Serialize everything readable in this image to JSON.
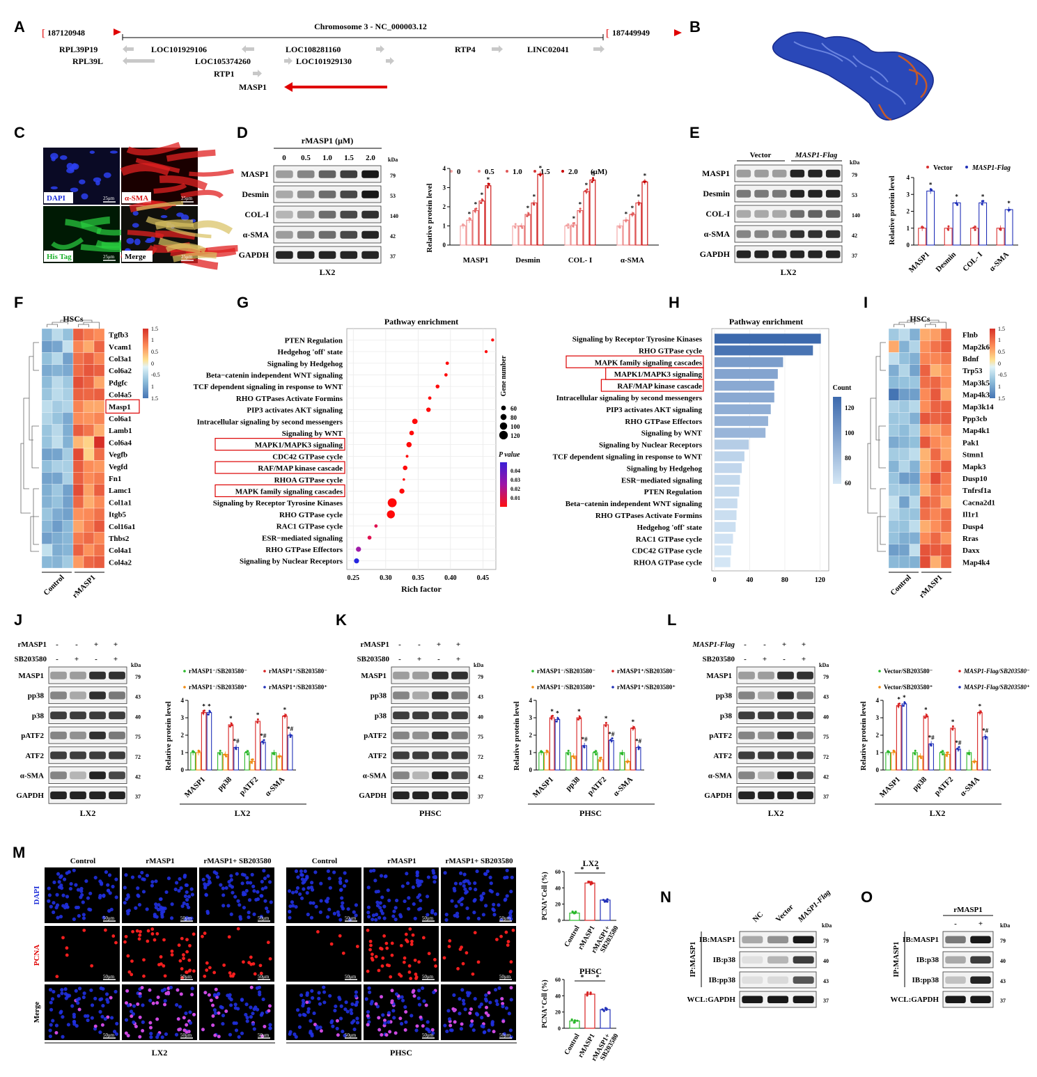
{
  "panel_letters": [
    "A",
    "B",
    "C",
    "D",
    "E",
    "F",
    "G",
    "H",
    "I",
    "J",
    "K",
    "L",
    "M",
    "N",
    "O"
  ],
  "panelA": {
    "start": "187120948",
    "end": "187449949",
    "title": "Chromosome 3 - NC_000003.12",
    "genes": [
      "RPL39P19",
      "LOC101929106",
      "LOC108281160",
      "RTP4",
      "LINC02041",
      "RPL39L",
      "LOC105374260",
      "LOC101929130",
      "RTP1",
      "MASP1"
    ]
  },
  "panelC": {
    "labels": [
      "DAPI",
      "α-SMA",
      "His Tag",
      "Merge"
    ],
    "scale": "25μm",
    "colors": {
      "dapi": "#1a2bd8",
      "sma": "#d81818",
      "his": "#1ab02a"
    }
  },
  "panelD": {
    "treatment": "rMASP1 (μM)",
    "doses": [
      "0",
      "0.5",
      "1.0",
      "1.5",
      "2.0"
    ],
    "blots": [
      "MASP1",
      "Desmin",
      "COL-I",
      "α-SMA",
      "GAPDH"
    ],
    "kda": [
      "79",
      "53",
      "140",
      "42",
      "37"
    ],
    "kda_label": "kDa",
    "cell": "LX2",
    "legend": [
      "0",
      "0.5",
      "1.0",
      "1.5",
      "2.0"
    ],
    "legend_unit": "(μM)",
    "ylabel": "Relative protein level",
    "groups": [
      "MASP1",
      "Desmin",
      "COL- I",
      "α-SMA"
    ],
    "star": "*"
  },
  "panelE": {
    "groups_top": [
      "Vector",
      "MASP1-Flag"
    ],
    "blots": [
      "MASP1",
      "Desmin",
      "COL-I",
      "α-SMA",
      "GAPDH"
    ],
    "kda": [
      "79",
      "53",
      "140",
      "42",
      "37"
    ],
    "kda_label": "kDa",
    "cell": "LX2",
    "legend": [
      "Vector",
      "MASP1-Flag"
    ],
    "ylabel": "Relative protein level",
    "groups": [
      "MASP1",
      "Desmin",
      "COL- I",
      "α-SMA"
    ],
    "star": "*"
  },
  "panelF": {
    "title": "HSCs",
    "genes": [
      "Tgfb3",
      "Vcam1",
      "Col3a1",
      "Col6a2",
      "Pdgfc",
      "Col4a5",
      "Masp1",
      "Col6a1",
      "Lamb1",
      "Col6a4",
      "Vegfb",
      "Vegfd",
      "Fn1",
      "Lamc1",
      "Col1a1",
      "Itgb5",
      "Col16a1",
      "Thbs2",
      "Col4a1",
      "Col4a2"
    ],
    "groups": [
      "Control",
      "rMASP1"
    ],
    "scale": [
      "1.5",
      "1",
      "0.5",
      "0",
      "-0.5",
      "1",
      "1.5"
    ]
  },
  "panelG": {
    "title": "Pathway enrichment",
    "xlabel": "Rich factor",
    "xticks": [
      "0.25",
      "0.30",
      "0.35",
      "0.40",
      "0.45"
    ],
    "size_title": "Gene number",
    "size_levels": [
      "60",
      "80",
      "100",
      "120"
    ],
    "p_title": "P value",
    "p_ticks": [
      "0.04",
      "0.03",
      "0.02",
      "0.01"
    ]
  },
  "panelH": {
    "title": "Pathway enrichment",
    "xticks": [
      "0",
      "40",
      "80",
      "120"
    ],
    "legend_title": "Count",
    "legend_ticks": [
      "120",
      "100",
      "80",
      "60"
    ]
  },
  "panelI": {
    "title": "HSCs",
    "genes": [
      "Flnb",
      "Map2k6",
      "Bdnf",
      "Trp53",
      "Map3k5",
      "Map4k3",
      "Map3k14",
      "Ppp3cb",
      "Map4k1",
      "Pak1",
      "Stmn1",
      "Mapk3",
      "Dusp10",
      "Tnfrsf1a",
      "Cacna2d1",
      "Il1r1",
      "Dusp4",
      "Rras",
      "Daxx",
      "Map4k4"
    ],
    "groups": [
      "Control",
      "rMASP1"
    ],
    "scale": [
      "1.5",
      "1",
      "0.5",
      "0",
      "-0.5",
      "1",
      "1.5"
    ]
  },
  "panelJ": {
    "row1_label": "rMASP1",
    "row2_label": "SB203580",
    "row1": [
      "-",
      "-",
      "+",
      "+"
    ],
    "row2": [
      "-",
      "+",
      "-",
      "+"
    ],
    "blots": [
      "MASP1",
      "pp38",
      "p38",
      "pATF2",
      "ATF2",
      "α-SMA",
      "GAPDH"
    ],
    "kda": [
      "79",
      "43",
      "40",
      "75",
      "72",
      "42",
      "37"
    ],
    "kda_label": "kDa",
    "cell": "LX2",
    "legend": [
      "rMASP1⁻/SB203580⁻",
      "rMASP1⁺/SB203580⁻",
      "rMASP1⁻/SB203580⁺",
      "rMASP1⁺/SB203580⁺"
    ],
    "ylabel": "Relative protein level",
    "groups": [
      "MASP1",
      "pp38",
      "pATF2",
      "α-SMA"
    ],
    "xgroup": "LX2"
  },
  "panelK": {
    "row1_label": "rMASP1",
    "row2_label": "SB203580",
    "row1": [
      "-",
      "-",
      "+",
      "+"
    ],
    "row2": [
      "-",
      "+",
      "-",
      "+"
    ],
    "blots": [
      "MASP1",
      "pp38",
      "p38",
      "pATF2",
      "ATF2",
      "α-SMA",
      "GAPDH"
    ],
    "kda": [
      "79",
      "43",
      "40",
      "75",
      "72",
      "42",
      "37"
    ],
    "kda_label": "kDa",
    "cell": "PHSC",
    "legend": [
      "rMASP1⁻/SB203580⁻",
      "rMASP1⁺/SB203580⁻",
      "rMASP1⁻/SB203580⁺",
      "rMASP1⁺/SB203580⁺"
    ],
    "ylabel": "Relative protein level",
    "groups": [
      "MASP1",
      "pp38",
      "pATF2",
      "α-SMA"
    ],
    "xgroup": "PHSC"
  },
  "panelL": {
    "row1_label": "MASP1-Flag",
    "row2_label": "SB203580",
    "row1": [
      "-",
      "-",
      "+",
      "+"
    ],
    "row2": [
      "-",
      "+",
      "-",
      "+"
    ],
    "blots": [
      "MASP1",
      "pp38",
      "p38",
      "pATF2",
      "ATF2",
      "α-SMA",
      "GAPDH"
    ],
    "kda": [
      "79",
      "43",
      "40",
      "75",
      "72",
      "42",
      "37"
    ],
    "kda_label": "kDa",
    "cell": "LX2",
    "legend": [
      "Vector/SB203580⁻",
      "MASP1-Flag/SB203580⁻",
      "Vector/SB203580⁺",
      "MASP1-Flag/SB203580⁺"
    ],
    "ylabel": "Relative protein level",
    "groups": [
      "MASP1",
      "pp38",
      "pATF2",
      "α-SMA"
    ],
    "xgroup": "LX2"
  },
  "panelM": {
    "cols": [
      "Control",
      "rMASP1",
      "rMASP1+ SB203580"
    ],
    "rows": [
      "DAPI",
      "PCNA",
      "Merge"
    ],
    "scale": "50μm",
    "cells": [
      "LX2",
      "PHSC"
    ],
    "bar_titles": [
      "LX2",
      "PHSC"
    ],
    "bar_ylabel": "PCNA⁺Cell (%)",
    "bar_groups": [
      "Control",
      "rMASP1",
      "rMASP1+",
      "SB203580"
    ],
    "bar_yticks_lx2": [
      "0",
      "20",
      "40",
      "60"
    ],
    "bar_yticks_phsc": [
      "0",
      "20",
      "40",
      "60"
    ]
  },
  "panelN": {
    "lanes": [
      "NC",
      "Vector",
      "MASP1-Flag"
    ],
    "ip": "IP:MASP1",
    "blots": [
      "IB:MASP1",
      "IB:p38",
      "IB:pp38",
      "WCL:GAPDH"
    ],
    "kda": [
      "79",
      "40",
      "43",
      "37"
    ],
    "kda_label": "kDa"
  },
  "panelO": {
    "treat": "rMASP1",
    "lanes": [
      "-",
      "+"
    ],
    "ip": "IP:MASP1",
    "blots": [
      "IB:MASP1",
      "IB:p38",
      "IB:pp38",
      "WCL:GAPDH"
    ],
    "kda": [
      "79",
      "40",
      "43",
      "37"
    ],
    "kda_label": "kDa"
  },
  "chart_data": [
    {
      "id": "G",
      "type": "scatter",
      "title": "Pathway enrichment",
      "xlabel": "Rich factor",
      "xlim": [
        0.24,
        0.47
      ],
      "categories": [
        "PTEN Regulation",
        "Hedgehog 'off' state",
        "Signaling by Hedgehog",
        "Beta−catenin independent WNT signaling",
        "TCF dependent signaling in response to WNT",
        "RHO GTPases Activate Formins",
        "PIP3 activates AKT signaling",
        "Intracellular signaling by second messengers",
        "Signaling by WNT",
        "MAPK1/MAPK3 signaling",
        "CDC42 GTPase cycle",
        "RAF/MAP kinase cascade",
        "RHOA GTPase cycle",
        "MAPK family signaling cascades",
        "Signaling by Receptor Tyrosine Kinases",
        "RHO GTPase cycle",
        "RAC1 GTPase cycle",
        "ESR−mediated signaling",
        "RHO GTPase Effectors",
        "Signaling by Nuclear Receptors"
      ],
      "highlighted": [
        "MAPK1/MAPK3 signaling",
        "RAF/MAP kinase cascade",
        "MAPK family signaling cascades"
      ],
      "rich_factor": [
        0.465,
        0.455,
        0.395,
        0.393,
        0.38,
        0.368,
        0.366,
        0.345,
        0.34,
        0.336,
        0.333,
        0.33,
        0.328,
        0.325,
        0.31,
        0.308,
        0.285,
        0.275,
        0.258,
        0.255
      ],
      "gene_number": [
        33,
        32,
        38,
        37,
        46,
        38,
        56,
        71,
        58,
        69,
        28,
        57,
        24,
        66,
        126,
        111,
        38,
        47,
        65,
        64
      ],
      "p_value": [
        0.001,
        0.001,
        0.001,
        0.001,
        0.001,
        0.002,
        0.001,
        0.001,
        0.001,
        0.001,
        0.002,
        0.001,
        0.004,
        0.001,
        0.001,
        0.001,
        0.006,
        0.01,
        0.025,
        0.045
      ]
    },
    {
      "id": "H",
      "type": "bar",
      "title": "Pathway enrichment",
      "categories": [
        "Signaling by Receptor Tyrosine Kinases",
        "RHO GTPase cycle",
        "MAPK family signaling cascades",
        "MAPK1/MAPK3 signaling",
        "RAF/MAP kinase cascade",
        "Intracellular signaling by second messengers",
        "PIP3 activates AKT signaling",
        "RHO GTPase Effectors",
        "Signaling by WNT",
        "Signaling by Nuclear Receptors",
        "TCF dependent signaling in response to WNT",
        "Signaling by Hedgehog",
        "ESR−mediated signaling",
        "PTEN Regulation",
        "Beta−catenin independent WNT signaling",
        "RHO GTPases Activate Formins",
        "Hedgehog 'off' state",
        "RAC1 GTPase cycle",
        "CDC42 GTPase cycle",
        "RHOA GTPase cycle"
      ],
      "highlighted": [
        "MAPK family signaling cascades",
        "MAPK1/MAPK3 signaling",
        "RAF/MAP kinase cascade"
      ],
      "values": [
        121,
        112,
        78,
        72,
        68,
        68,
        64,
        61,
        58,
        39,
        34,
        31,
        29,
        28,
        26,
        25,
        24,
        21,
        19,
        18
      ],
      "xlim": [
        0,
        130
      ]
    },
    {
      "id": "D",
      "type": "bar",
      "ylabel": "Relative protein level",
      "ylim": [
        0,
        4
      ],
      "categories": [
        "MASP1",
        "Desmin",
        "COL- I",
        "α-SMA"
      ],
      "series": [
        {
          "name": "0",
          "values": [
            1.0,
            1.0,
            1.0,
            1.0
          ]
        },
        {
          "name": "0.5",
          "values": [
            1.3,
            1.0,
            1.05,
            1.3
          ]
        },
        {
          "name": "1.0",
          "values": [
            1.8,
            1.6,
            1.8,
            1.6
          ]
        },
        {
          "name": "1.5",
          "values": [
            2.3,
            2.2,
            2.8,
            2.2
          ]
        },
        {
          "name": "2.0",
          "values": [
            3.1,
            3.7,
            3.4,
            3.3
          ]
        }
      ]
    },
    {
      "id": "E",
      "type": "bar",
      "ylabel": "Relative protein level",
      "ylim": [
        0,
        4
      ],
      "categories": [
        "MASP1",
        "Desmin",
        "COL- I",
        "α-SMA"
      ],
      "series": [
        {
          "name": "Vector",
          "values": [
            1.0,
            1.0,
            1.0,
            1.0
          ]
        },
        {
          "name": "MASP1-Flag",
          "values": [
            3.2,
            2.5,
            2.5,
            2.1
          ]
        }
      ]
    },
    {
      "id": "J",
      "type": "bar",
      "ylabel": "Relative protein level",
      "ylim": [
        0,
        4
      ],
      "categories": [
        "MASP1",
        "pp38",
        "pATF2",
        "α-SMA"
      ],
      "series": [
        {
          "name": "rMASP1⁻/SB203580⁻",
          "values": [
            1.0,
            1.0,
            1.0,
            1.0
          ]
        },
        {
          "name": "rMASP1⁻/SB203580⁺",
          "values": [
            1.0,
            0.9,
            0.5,
            0.8
          ]
        },
        {
          "name": "rMASP1⁺/SB203580⁻",
          "values": [
            3.3,
            2.6,
            2.8,
            3.1
          ]
        },
        {
          "name": "rMASP1⁺/SB203580⁺",
          "values": [
            3.3,
            1.3,
            1.6,
            2.0
          ]
        }
      ]
    },
    {
      "id": "K",
      "type": "bar",
      "ylabel": "Relative protein level",
      "ylim": [
        0,
        4
      ],
      "categories": [
        "MASP1",
        "pp38",
        "pATF2",
        "α-SMA"
      ],
      "series": [
        {
          "name": "rMASP1⁻/SB203580⁻",
          "values": [
            1.0,
            1.0,
            1.0,
            1.0
          ]
        },
        {
          "name": "rMASP1⁻/SB203580⁺",
          "values": [
            1.0,
            0.8,
            0.6,
            0.5
          ]
        },
        {
          "name": "rMASP1⁺/SB203580⁻",
          "values": [
            3.0,
            3.0,
            2.6,
            2.4
          ]
        },
        {
          "name": "rMASP1⁺/SB203580⁺",
          "values": [
            2.9,
            1.4,
            1.7,
            1.3
          ]
        }
      ]
    },
    {
      "id": "L",
      "type": "bar",
      "ylabel": "Relative protein level",
      "ylim": [
        0,
        4
      ],
      "categories": [
        "MASP1",
        "pp38",
        "pATF2",
        "α-SMA"
      ],
      "series": [
        {
          "name": "Vector/SB203580⁻",
          "values": [
            1.0,
            1.0,
            1.0,
            1.0
          ]
        },
        {
          "name": "Vector/SB203580⁺",
          "values": [
            1.0,
            0.8,
            0.9,
            0.5
          ]
        },
        {
          "name": "MASP1-Flag/SB203580⁻",
          "values": [
            3.7,
            3.1,
            2.4,
            3.3
          ]
        },
        {
          "name": "MASP1-Flag/SB203580⁺",
          "values": [
            3.8,
            1.5,
            1.2,
            1.9
          ]
        }
      ]
    },
    {
      "id": "M-LX2",
      "type": "bar",
      "title": "LX2",
      "ylabel": "PCNA⁺Cell (%)",
      "ylim": [
        0,
        60
      ],
      "categories": [
        "Control",
        "rMASP1",
        "rMASP1+ SB203580"
      ],
      "values": [
        9,
        46,
        25
      ]
    },
    {
      "id": "M-PHSC",
      "type": "bar",
      "title": "PHSC",
      "ylabel": "PCNA⁺Cell (%)",
      "ylim": [
        0,
        60
      ],
      "categories": [
        "Control",
        "rMASP1",
        "rMASP1+ SB203580"
      ],
      "values": [
        9,
        42,
        23
      ]
    }
  ]
}
